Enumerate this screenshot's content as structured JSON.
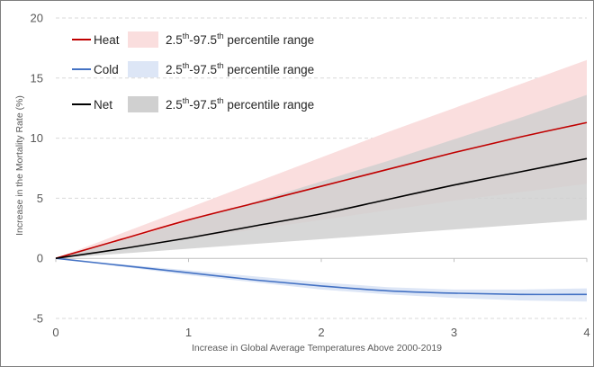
{
  "chart_data": {
    "type": "line",
    "title": "",
    "xlabel": "Increase in Global Average Temperatures Above 2000-2019",
    "ylabel": "Increase in the Mortality Rate (%)",
    "xlim": [
      0,
      4
    ],
    "ylim": [
      -5,
      20
    ],
    "x_ticks": [
      "0",
      "1",
      "2",
      "3",
      "4"
    ],
    "y_ticks": [
      "-5",
      "0",
      "5",
      "10",
      "15",
      "20"
    ],
    "grid": "horizontal dashed",
    "legend_position": "top-left",
    "x": [
      0,
      0.5,
      1,
      1.5,
      2,
      2.5,
      3,
      3.5,
      4
    ],
    "series": [
      {
        "name": "Heat",
        "color": "#c00000",
        "values": [
          0,
          1.6,
          3.2,
          4.6,
          6.0,
          7.4,
          8.8,
          10.1,
          11.3
        ],
        "band_name": "2.5th-97.5th percentile range",
        "band_color": "#fadede",
        "lower": [
          0,
          0.8,
          1.6,
          2.4,
          3.2,
          4.0,
          4.8,
          5.5,
          6.2
        ],
        "upper": [
          0,
          2.1,
          4.2,
          6.3,
          8.4,
          10.5,
          12.5,
          14.5,
          16.5
        ]
      },
      {
        "name": "Cold",
        "color": "#4472c4",
        "values": [
          0,
          -0.6,
          -1.2,
          -1.8,
          -2.3,
          -2.7,
          -2.9,
          -3.0,
          -3.0
        ],
        "band_name": "2.5th-97.5th percentile range",
        "band_color": "#dde6f6",
        "lower": [
          0,
          -0.7,
          -1.4,
          -2.0,
          -2.6,
          -3.0,
          -3.3,
          -3.5,
          -3.6
        ],
        "upper": [
          0,
          -0.5,
          -1.0,
          -1.5,
          -2.0,
          -2.4,
          -2.6,
          -2.6,
          -2.5
        ]
      },
      {
        "name": "Net",
        "color": "#000000",
        "values": [
          0,
          0.8,
          1.7,
          2.7,
          3.7,
          4.9,
          6.1,
          7.2,
          8.3
        ],
        "band_name": "2.5th-97.5th percentile range",
        "band_color": "#d0d0d0",
        "lower": [
          0,
          0.4,
          0.8,
          1.2,
          1.6,
          2.0,
          2.4,
          2.8,
          3.2
        ],
        "upper": [
          0,
          1.5,
          3.1,
          4.7,
          6.4,
          8.1,
          9.9,
          11.7,
          13.6
        ]
      }
    ],
    "legend": {
      "range_text_base": "2.5",
      "range_text_sup1": "th",
      "range_text_mid": "-97.5",
      "range_text_sup2": "th",
      "range_text_tail": " percentile range"
    }
  }
}
